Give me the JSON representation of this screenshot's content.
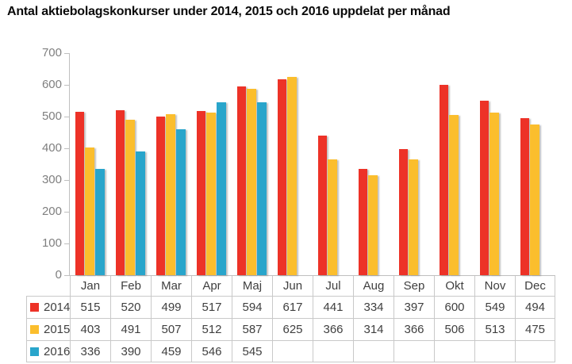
{
  "title": "Antal aktiebolagskonkurser under 2014, 2015 och 2016 uppdelat per månad",
  "chart_data": {
    "type": "bar",
    "title": "Antal aktiebolagskonkurser under 2014, 2015 och 2016 uppdelat per månad",
    "categories": [
      "Jan",
      "Feb",
      "Mar",
      "Apr",
      "Maj",
      "Jun",
      "Jul",
      "Aug",
      "Sep",
      "Okt",
      "Nov",
      "Dec"
    ],
    "series": [
      {
        "name": "2014",
        "color": "#ED3227",
        "values": [
          515,
          520,
          499,
          517,
          594,
          617,
          441,
          334,
          397,
          600,
          549,
          494
        ]
      },
      {
        "name": "2015",
        "color": "#FBBE2D",
        "values": [
          403,
          491,
          507,
          512,
          587,
          625,
          366,
          314,
          366,
          506,
          513,
          475
        ]
      },
      {
        "name": "2016",
        "color": "#29A5CB",
        "values": [
          336,
          390,
          459,
          546,
          545,
          null,
          null,
          null,
          null,
          null,
          null,
          null
        ]
      }
    ],
    "xlabel": "",
    "ylabel": "",
    "ylim": [
      0,
      700
    ],
    "yticks": [
      0,
      100,
      200,
      300,
      400,
      500,
      600,
      700
    ],
    "grid": false,
    "legend_position": "data-table-left",
    "data_table_shown": true,
    "axis_color": "#bfbfbf",
    "tick_label_color": "#7f7f7f"
  }
}
